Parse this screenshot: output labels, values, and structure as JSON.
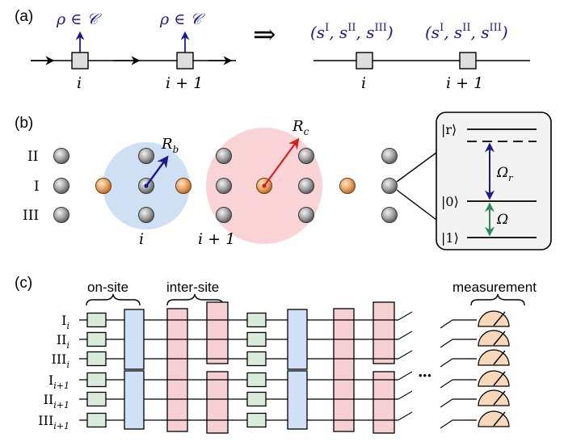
{
  "panel_a": {
    "label": "(a)",
    "constraint": "ρ ∈ 𝒞",
    "implies": "⇒",
    "site_left": "i",
    "site_right": "i + 1",
    "triple_open": "(s",
    "sup_1": "I",
    "sup_2": "II",
    "sup_3": "III",
    "comma_s": ", s",
    "triple_close": ")"
  },
  "panel_b": {
    "label": "(b)",
    "row_I": "I",
    "row_II": "II",
    "row_III": "III",
    "blockade_radius": "R",
    "blockade_sub": "b",
    "coupling_radius": "R",
    "coupling_sub": "c",
    "site_left": "i",
    "site_right": "i + 1",
    "level_r": "|r⟩",
    "level_0": "|0⟩",
    "level_1": "|1⟩",
    "rabi_r": "Ω",
    "rabi_r_sub": "r",
    "rabi": "Ω"
  },
  "panel_c": {
    "label": "(c)",
    "on_site_label": "on-site",
    "inter_site_label": "inter-site",
    "measurement_label": "measurement",
    "ellipsis": "•••",
    "wires": [
      {
        "name": "I",
        "sub": "i"
      },
      {
        "name": "II",
        "sub": "i"
      },
      {
        "name": "III",
        "sub": "i"
      },
      {
        "name": "I",
        "sub": "i+1"
      },
      {
        "name": "II",
        "sub": "i+1"
      },
      {
        "name": "III",
        "sub": "i+1"
      }
    ]
  },
  "colors": {
    "blue_arrow": "#1a1a8c",
    "red_arrow": "#d61f1f",
    "green_arrow": "#2e8b57",
    "blockade_disk": "#cfdff4",
    "coupling_disk": "#fad3d6",
    "gate_green": "#d9ebdb",
    "gate_blue": "#cfe0f7",
    "gate_pink": "#f6cfd2",
    "meter": "#f7d9b9",
    "atom_gray": "#8a8a8a",
    "atom_orange": "#e8a468"
  }
}
